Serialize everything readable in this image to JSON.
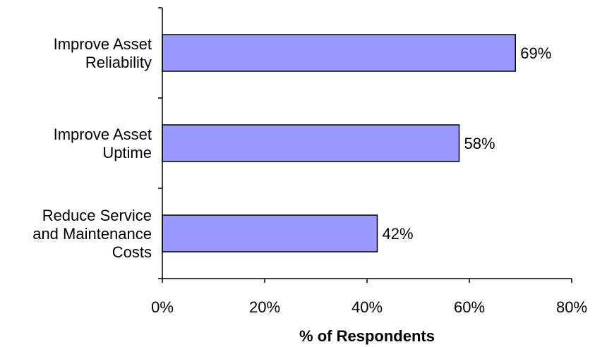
{
  "chart_data": {
    "type": "bar",
    "orientation": "horizontal",
    "categories": [
      [
        "Improve Asset",
        "Reliability"
      ],
      [
        "Improve Asset",
        "Uptime"
      ],
      [
        "Reduce Service",
        "and Maintenance",
        "Costs"
      ]
    ],
    "values": [
      69,
      58,
      42
    ],
    "data_labels": [
      "69%",
      "58%",
      "42%"
    ],
    "xlabel": "% of Respondents",
    "xlim": [
      0,
      80
    ],
    "x_ticks": [
      0,
      20,
      40,
      60,
      80
    ],
    "x_tick_labels": [
      "0%",
      "20%",
      "40%",
      "60%",
      "80%"
    ],
    "grid": false,
    "legend": "none",
    "colors": {
      "bar_fill": "#9999ff",
      "bar_stroke": "#000000",
      "axis": "#000000"
    }
  }
}
